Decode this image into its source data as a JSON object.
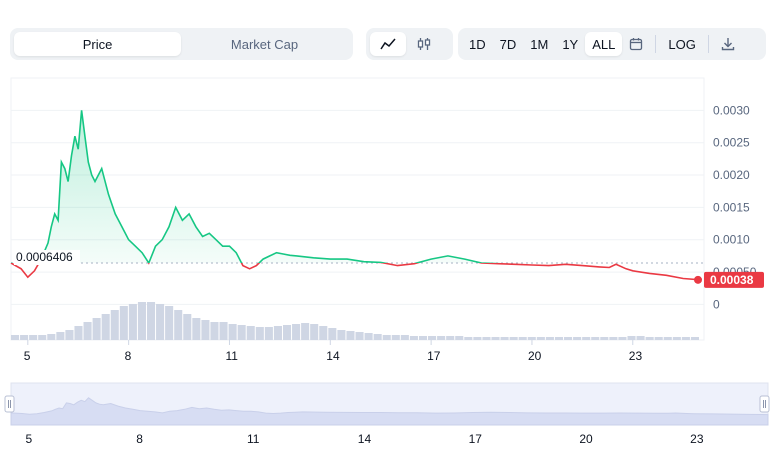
{
  "toolbar": {
    "type_tabs": [
      {
        "label": "Price",
        "active": true
      },
      {
        "label": "Market Cap",
        "active": false
      }
    ],
    "style_buttons": [
      {
        "icon": "line-chart-icon",
        "active": true
      },
      {
        "icon": "candlestick-icon",
        "active": false
      }
    ],
    "range_buttons": [
      {
        "label": "1D",
        "active": false
      },
      {
        "label": "7D",
        "active": false
      },
      {
        "label": "1M",
        "active": false
      },
      {
        "label": "1Y",
        "active": false
      },
      {
        "label": "ALL",
        "active": true
      }
    ],
    "calendar_icon": "calendar-icon",
    "log_label": "LOG",
    "download_icon": "download-icon"
  },
  "colors": {
    "up": "#16c784",
    "down": "#ea3943",
    "volume": "#cfd6e4",
    "navigator": "#e6ebfb"
  },
  "chart_data": {
    "type": "line",
    "x_ticks": [
      "5",
      "8",
      "11",
      "14",
      "17",
      "20",
      "23"
    ],
    "navigator_ticks": [
      "5",
      "8",
      "11",
      "14",
      "17",
      "20",
      "23"
    ],
    "y_ticks": [
      "0.0030",
      "0.0025",
      "0.0020",
      "0.0015",
      "0.0010",
      "0.00050",
      "0"
    ],
    "ylim": [
      -0.00055,
      0.0035
    ],
    "xlim": [
      4.5,
      25
    ],
    "baseline_value": 0.0006406,
    "baseline_label": "0.0006406",
    "last_price_label": "0.00038",
    "last_price": 0.00038,
    "grid": true,
    "series": [
      {
        "x": [
          4.5,
          4.8,
          5.0,
          5.2,
          5.4,
          5.6,
          5.7,
          5.8,
          5.9,
          6.0,
          6.1,
          6.2,
          6.3,
          6.4,
          6.5,
          6.6,
          6.7,
          6.8,
          6.9,
          7.0,
          7.2,
          7.4,
          7.6,
          7.8,
          8.0,
          8.2,
          8.4,
          8.6,
          8.8,
          9.0,
          9.2,
          9.4,
          9.6,
          9.8,
          10.0,
          10.2,
          10.4,
          10.6,
          10.8,
          11.0,
          11.2,
          11.4,
          11.6,
          11.8,
          12.0,
          12.2,
          12.4,
          12.6,
          12.8,
          13.0,
          13.5,
          14.0,
          14.5,
          15.0,
          15.5,
          16.0,
          16.5,
          17.0,
          17.5,
          18.0,
          18.5,
          19.0,
          19.5,
          20.0,
          20.5,
          21.0,
          21.5,
          22.0,
          22.3,
          22.5,
          22.8,
          23.0,
          23.5,
          24.0,
          24.5,
          25.0
        ],
        "y": [
          0.00064,
          0.00055,
          0.00042,
          0.00052,
          0.0007,
          0.00095,
          0.0012,
          0.0014,
          0.0013,
          0.0022,
          0.0021,
          0.0019,
          0.0023,
          0.0026,
          0.0024,
          0.003,
          0.0026,
          0.0022,
          0.002,
          0.0019,
          0.0021,
          0.0017,
          0.0014,
          0.0012,
          0.001,
          0.0009,
          0.0008,
          0.00064,
          0.0009,
          0.001,
          0.0012,
          0.0015,
          0.0013,
          0.0014,
          0.0012,
          0.00105,
          0.0011,
          0.001,
          0.0009,
          0.0009,
          0.0008,
          0.0006,
          0.00055,
          0.0006,
          0.0007,
          0.00075,
          0.0008,
          0.00078,
          0.00076,
          0.00075,
          0.00072,
          0.0007,
          0.0007,
          0.00066,
          0.00065,
          0.0006,
          0.00063,
          0.0007,
          0.00075,
          0.0007,
          0.00064,
          0.00063,
          0.00062,
          0.00061,
          0.0006,
          0.00062,
          0.0006,
          0.00058,
          0.00057,
          0.00062,
          0.00055,
          0.00052,
          0.00048,
          0.00045,
          0.0004,
          0.00038
        ]
      }
    ],
    "volume": [
      5,
      5,
      5,
      5,
      6,
      8,
      10,
      14,
      18,
      22,
      26,
      30,
      34,
      36,
      38,
      38,
      36,
      34,
      30,
      26,
      22,
      20,
      18,
      18,
      16,
      15,
      14,
      13,
      13,
      14,
      15,
      16,
      17,
      16,
      14,
      12,
      10,
      9,
      8,
      7,
      6,
      5,
      5,
      5,
      4,
      4,
      4,
      4,
      4,
      4,
      3,
      3,
      3,
      3,
      3,
      3,
      3,
      3,
      3,
      3,
      3,
      3,
      3,
      3,
      3,
      3,
      3,
      3,
      4,
      4,
      3,
      3,
      3,
      3,
      3,
      3
    ]
  }
}
